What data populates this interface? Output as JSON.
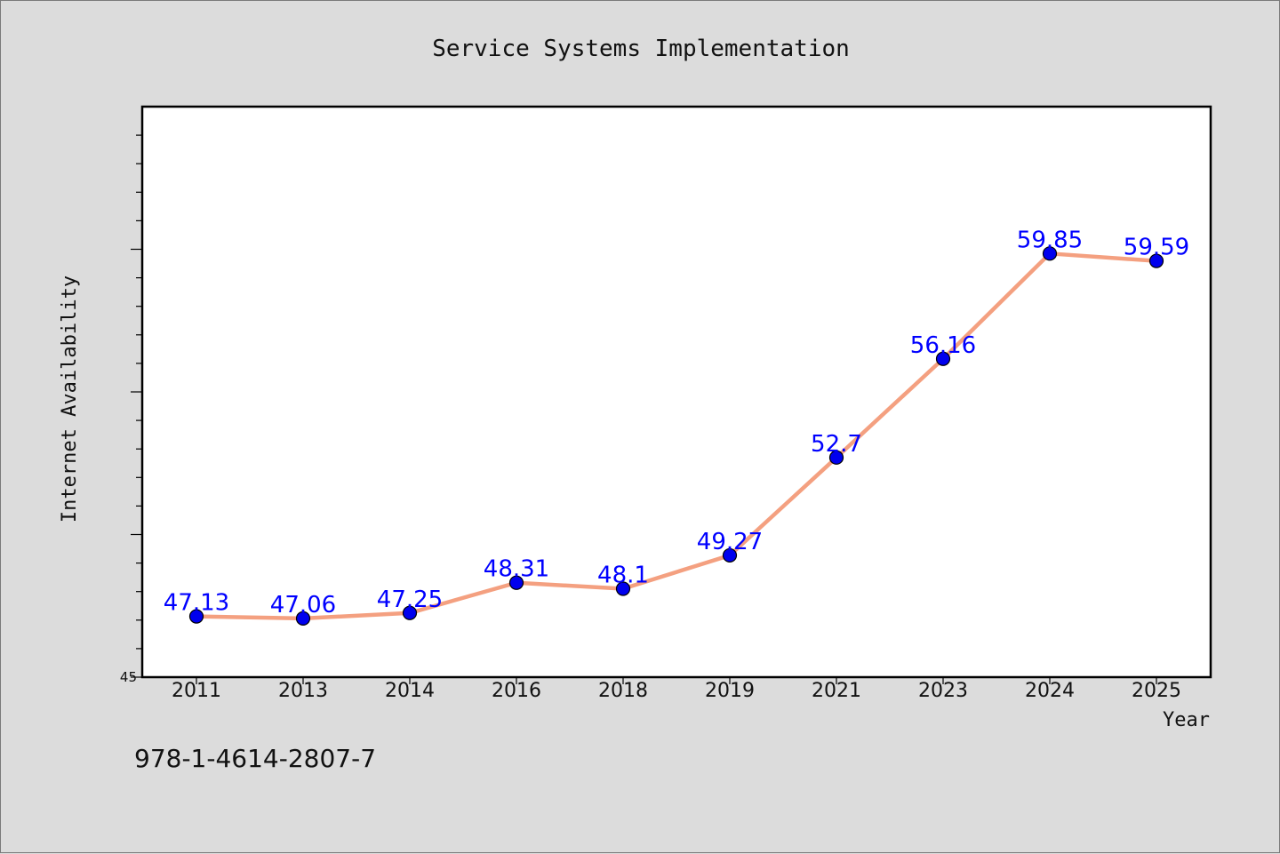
{
  "chart_data": {
    "type": "line",
    "title": "Service Systems Implementation",
    "xlabel": "Year",
    "ylabel": "Internet Availability",
    "categories": [
      "2011",
      "2013",
      "2014",
      "2016",
      "2018",
      "2019",
      "2021",
      "2023",
      "2024",
      "2025"
    ],
    "series": [
      {
        "values": [
          47.13,
          47.06,
          47.25,
          48.31,
          48.1,
          49.27,
          52.7,
          56.16,
          59.85,
          59.59
        ],
        "labels": [
          "47.13",
          "47.06",
          "47.25",
          "48.31",
          "48.1",
          "49.27",
          "52.7",
          "56.16",
          "59.85",
          "59.59"
        ],
        "line_color": "#f4a080",
        "marker_color": "#0000ee"
      }
    ],
    "ylim": [
      45,
      65
    ],
    "ytick_labels": [
      "45"
    ],
    "grid": false,
    "legend": "none"
  },
  "footer": {
    "text": "978-1-4614-2807-7"
  }
}
